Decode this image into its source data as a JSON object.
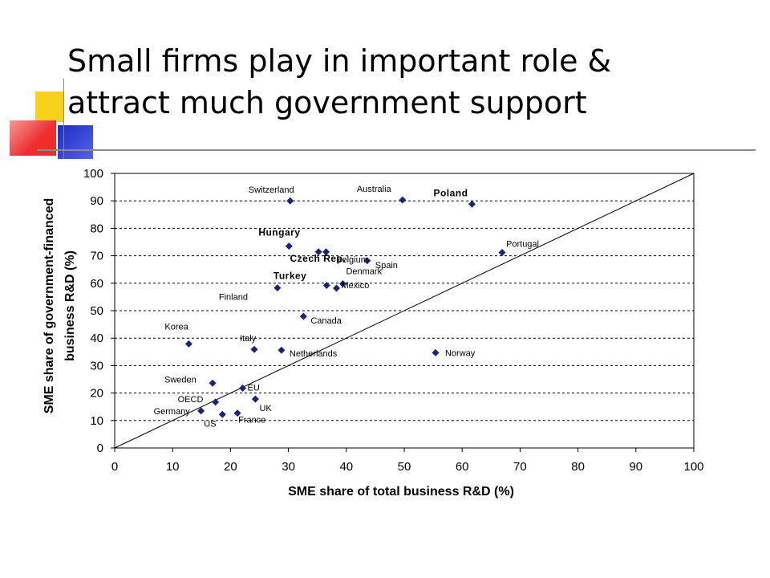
{
  "slide": {
    "title_line1": "Small firms play in important role &",
    "title_line2": "attract much government support",
    "accent_colors": {
      "yellow": "#f7d21a",
      "red": "#f04040",
      "blue": "#2b3bd6",
      "rule": "#777777"
    }
  },
  "chart_data": {
    "type": "scatter",
    "title": "",
    "xlabel": "SME share of total business R&D (%)",
    "ylabel_line1": "SME share of government-financed",
    "ylabel_line2": "business R&D (%)",
    "xlim": [
      0,
      100
    ],
    "ylim": [
      0,
      100
    ],
    "xticks": [
      0,
      10,
      20,
      30,
      40,
      50,
      60,
      70,
      80,
      90,
      100
    ],
    "yticks": [
      0,
      10,
      20,
      30,
      40,
      50,
      60,
      70,
      80,
      90,
      100
    ],
    "grid": "horizontal dashed",
    "reference_line": "y = x",
    "marker_color": "#1a237e",
    "points": [
      {
        "label": "Switzerland",
        "x": 30.3,
        "y": 90,
        "bold": false
      },
      {
        "label": "Australia",
        "x": 49.7,
        "y": 90.3,
        "bold": false
      },
      {
        "label": "Poland",
        "x": 61.7,
        "y": 88.8,
        "bold": true
      },
      {
        "label": "Hungary",
        "x": 30.1,
        "y": 73.5,
        "bold": true
      },
      {
        "label": "Belgium",
        "x": 35.2,
        "y": 71.4,
        "bold": false
      },
      {
        "label": "Czech Rep.",
        "x": 36.5,
        "y": 71.4,
        "bold": true
      },
      {
        "label": "Portugal",
        "x": 66.9,
        "y": 71.2,
        "bold": false
      },
      {
        "label": "Spain",
        "x": 43.6,
        "y": 68.2,
        "bold": false
      },
      {
        "label": "Denmark",
        "x": 39.4,
        "y": 59.8,
        "bold": false
      },
      {
        "label": "Mexico",
        "x": 38.3,
        "y": 58.2,
        "bold": false
      },
      {
        "label": "Turkey",
        "x": 28.1,
        "y": 58.3,
        "bold": true
      },
      {
        "label": "",
        "x": 36.6,
        "y": 59.2,
        "bold": false
      },
      {
        "label": "Finland",
        "x": 28.1,
        "y": 58.3,
        "bold": false
      },
      {
        "label": "Canada",
        "x": 32.6,
        "y": 47.9,
        "bold": false
      },
      {
        "label": "Korea",
        "x": 12.8,
        "y": 37.9,
        "bold": false
      },
      {
        "label": "Italy",
        "x": 24.1,
        "y": 35.9,
        "bold": false
      },
      {
        "label": "Netherlands",
        "x": 28.8,
        "y": 35.6,
        "bold": false
      },
      {
        "label": "Norway",
        "x": 55.4,
        "y": 34.7,
        "bold": false
      },
      {
        "label": "Sweden",
        "x": 16.9,
        "y": 23.6,
        "bold": false
      },
      {
        "label": "EU",
        "x": 22.1,
        "y": 21.8,
        "bold": false
      },
      {
        "label": "OECD",
        "x": 17.4,
        "y": 16.7,
        "bold": false
      },
      {
        "label": "UK",
        "x": 24.3,
        "y": 17.8,
        "bold": false
      },
      {
        "label": "Germany",
        "x": 14.9,
        "y": 13.5,
        "bold": false
      },
      {
        "label": "US",
        "x": 18.6,
        "y": 12.2,
        "bold": false
      },
      {
        "label": "France",
        "x": 21.2,
        "y": 12.7,
        "bold": false
      }
    ]
  }
}
